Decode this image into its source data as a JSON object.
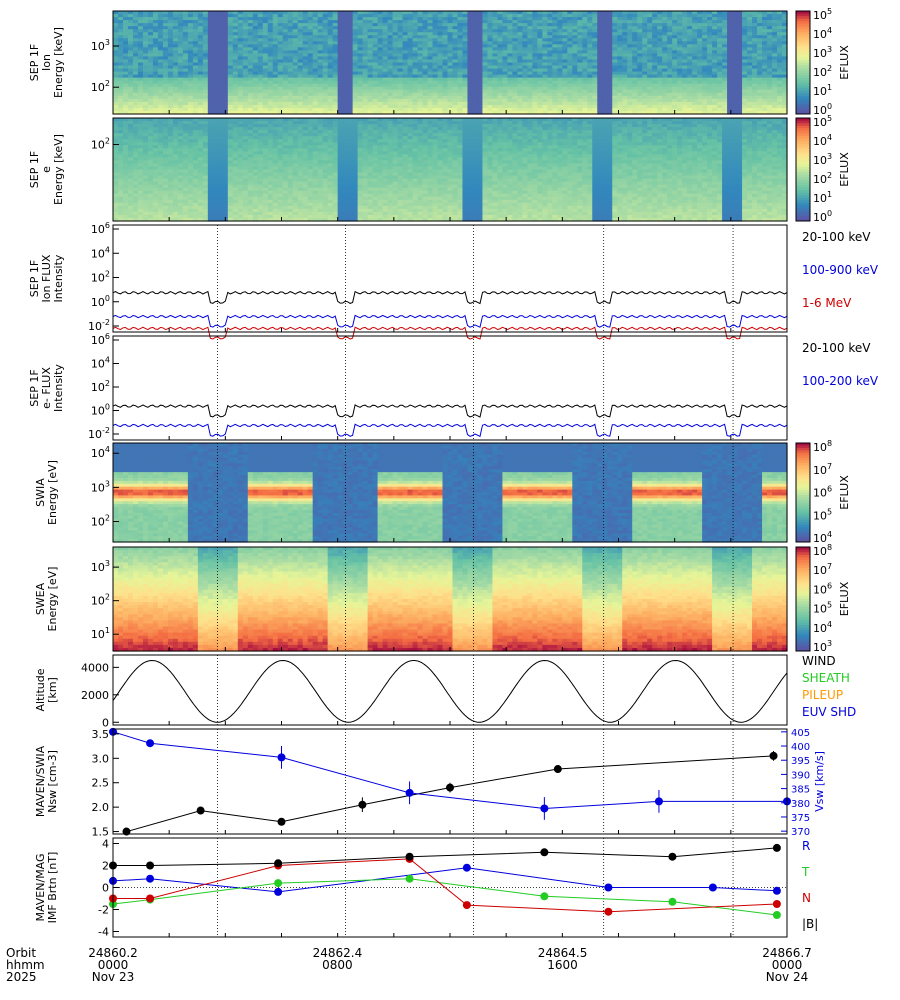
{
  "time_axis": {
    "rows": [
      {
        "label": "Orbit",
        "ticks": [
          "24860.2",
          "24862.4",
          "24864.5",
          "24866.7"
        ]
      },
      {
        "label": "hhmm",
        "ticks": [
          "0000",
          "0800",
          "1600",
          "0000"
        ]
      },
      {
        "label": "2025",
        "ticks": [
          "Nov 23",
          "",
          "",
          "Nov 24"
        ]
      }
    ],
    "dotted_orbit_fractions": [
      0.155,
      0.345,
      0.535,
      0.728,
      0.92
    ],
    "n_orbits": 5
  },
  "panels": [
    {
      "id": "sep-ion",
      "type": "heatmap",
      "ylabel_lines": [
        "SEP 1F",
        "Ion",
        "Energy [keV]"
      ],
      "y_ticks": [
        {
          "label": "10",
          "exp": "3",
          "v": 3
        },
        {
          "label": "10",
          "exp": "2",
          "v": 2
        }
      ],
      "ylim_log10": [
        1.35,
        3.85
      ],
      "cbar": {
        "label": "EFLUX",
        "ticks": [
          "0",
          "1",
          "2",
          "3",
          "4",
          "5"
        ],
        "palette": "spectral"
      }
    },
    {
      "id": "sep-e",
      "type": "heatmap",
      "ylabel_lines": [
        "SEP 1F",
        "e",
        "Energy [keV]"
      ],
      "y_ticks": [
        {
          "label": "10",
          "exp": "2",
          "v": 2
        }
      ],
      "ylim_log10": [
        0.7,
        2.45
      ],
      "cbar": {
        "label": "EFLUX",
        "ticks": [
          "0",
          "1",
          "2",
          "3",
          "4",
          "5"
        ],
        "palette": "spectral"
      }
    },
    {
      "id": "sep-ion-flux",
      "type": "line",
      "ylabel_lines": [
        "SEP 1F",
        "Ion FLUX",
        "Intensity"
      ],
      "y_ticks": [
        {
          "label": "10",
          "exp": "6"
        },
        {
          "label": "10",
          "exp": "4"
        },
        {
          "label": "10",
          "exp": "2"
        },
        {
          "label": "10",
          "exp": "0"
        },
        {
          "label": "10",
          "exp": "-2"
        }
      ],
      "ylim_log10": [
        -3,
        6
      ],
      "series": [
        {
          "name": "20-100 keV",
          "color": "#000000",
          "base_log": 0.3
        },
        {
          "name": "100-900 keV",
          "color": "#0000dd",
          "base_log": -1.7
        },
        {
          "name": "1-6 MeV",
          "color": "#cc0000",
          "base_log": -2.7
        }
      ]
    },
    {
      "id": "sep-e-flux",
      "type": "line",
      "ylabel_lines": [
        "SEP 1F",
        "e- FLUX",
        "Intensity"
      ],
      "y_ticks": [
        {
          "label": "10",
          "exp": "6"
        },
        {
          "label": "10",
          "exp": "4"
        },
        {
          "label": "10",
          "exp": "2"
        },
        {
          "label": "10",
          "exp": "0"
        },
        {
          "label": "10",
          "exp": "-2"
        }
      ],
      "ylim_log10": [
        -2.6,
        6
      ],
      "series": [
        {
          "name": "20-100 keV",
          "color": "#000000",
          "base_log": 0.2
        },
        {
          "name": "100-200 keV",
          "color": "#0000dd",
          "base_log": -1.4
        }
      ]
    },
    {
      "id": "swia",
      "type": "heatmap",
      "ylabel_lines": [
        "SWIA",
        "Energy [eV]"
      ],
      "y_ticks": [
        {
          "label": "10",
          "exp": "4",
          "v": 4
        },
        {
          "label": "10",
          "exp": "3",
          "v": 3
        },
        {
          "label": "10",
          "exp": "2",
          "v": 2
        }
      ],
      "ylim_log10": [
        1.4,
        4.3
      ],
      "cbar": {
        "label": "EFLUX",
        "ticks": [
          "4",
          "5",
          "6",
          "7",
          "8"
        ],
        "palette": "spectral"
      }
    },
    {
      "id": "swea",
      "type": "heatmap",
      "ylabel_lines": [
        "SWEA",
        "Energy [eV]"
      ],
      "y_ticks": [
        {
          "label": "10",
          "exp": "3",
          "v": 3
        },
        {
          "label": "10",
          "exp": "2",
          "v": 2
        },
        {
          "label": "10",
          "exp": "1",
          "v": 1
        }
      ],
      "ylim_log10": [
        0.5,
        3.6
      ],
      "cbar": {
        "label": "EFLUX",
        "ticks": [
          "3",
          "4",
          "5",
          "6",
          "7",
          "8"
        ],
        "palette": "spectral"
      }
    },
    {
      "id": "altitude",
      "type": "line",
      "ylabel_lines": [
        "Altitude",
        "[km]"
      ],
      "y_ticks": [
        {
          "label": "4000",
          "v": 4000
        },
        {
          "label": "2000",
          "v": 2000
        },
        {
          "label": "0",
          "v": 0
        }
      ],
      "ylim": [
        -200,
        4900
      ],
      "legend": [
        {
          "name": "WIND",
          "color": "#000000"
        },
        {
          "name": "SHEATH",
          "color": "#22cc22"
        },
        {
          "name": "PILEUP",
          "color": "#ff9900"
        },
        {
          "name": "EUV SHD",
          "color": "#0000dd"
        }
      ]
    },
    {
      "id": "nsw-vsw",
      "type": "scatter",
      "ylabel_lines": [
        "MAVEN/SWIA",
        "Nsw [cm-3]"
      ],
      "y_ticks": [
        {
          "label": "3.5",
          "v": 3.5
        },
        {
          "label": "3.0",
          "v": 3.0
        },
        {
          "label": "2.5",
          "v": 2.5
        },
        {
          "label": "2.0",
          "v": 2.0
        },
        {
          "label": "1.5",
          "v": 1.5
        }
      ],
      "ylim": [
        1.45,
        3.6
      ],
      "y2label": "Vsw [km/s]",
      "y2_ticks": [
        {
          "label": "405",
          "v": 405
        },
        {
          "label": "400",
          "v": 400
        },
        {
          "label": "395",
          "v": 395
        },
        {
          "label": "390",
          "v": 390
        },
        {
          "label": "385",
          "v": 385
        },
        {
          "label": "380",
          "v": 380
        },
        {
          "label": "375",
          "v": 375
        },
        {
          "label": "370",
          "v": 370
        }
      ],
      "y2lim": [
        369,
        406
      ],
      "series": [
        {
          "name": "Nsw",
          "color": "#000000",
          "axis": "left",
          "x": [
            0.02,
            0.13,
            0.25,
            0.37,
            0.5,
            0.66,
            0.98
          ],
          "y": [
            1.5,
            1.93,
            1.7,
            2.05,
            2.4,
            2.78,
            3.05
          ],
          "err": [
            0,
            0.05,
            0.06,
            0.15,
            0.1,
            0.08,
            0.1
          ]
        },
        {
          "name": "Vsw",
          "color": "#0000dd",
          "axis": "right",
          "x": [
            0.0,
            0.055,
            0.25,
            0.44,
            0.64,
            0.81,
            1.0
          ],
          "y": [
            405,
            401,
            396,
            383.5,
            378,
            380.5,
            380.5
          ],
          "err": [
            0,
            0,
            4,
            4,
            4,
            4,
            2
          ]
        }
      ]
    },
    {
      "id": "imf",
      "type": "scatter",
      "ylabel_lines": [
        "MAVEN/MAG",
        "IMF Brtn [nT]"
      ],
      "y_ticks": [
        {
          "label": "4",
          "v": 4
        },
        {
          "label": "2",
          "v": 2
        },
        {
          "label": "0",
          "v": 0
        },
        {
          "label": "-2",
          "v": -2
        },
        {
          "label": "-4",
          "v": -4
        }
      ],
      "ylim": [
        -4.5,
        4.5
      ],
      "series": [
        {
          "name": "R",
          "color": "#0000dd",
          "x": [
            0.0,
            0.055,
            0.245,
            0.525,
            0.735,
            0.89,
            0.985
          ],
          "y": [
            0.6,
            0.8,
            -0.4,
            1.8,
            0.0,
            0.0,
            -0.3
          ]
        },
        {
          "name": "T",
          "color": "#22cc22",
          "x": [
            0.0,
            0.055,
            0.245,
            0.44,
            0.64,
            0.83,
            0.985
          ],
          "y": [
            -1.5,
            -1.1,
            0.4,
            0.8,
            -0.8,
            -1.3,
            -2.5
          ]
        },
        {
          "name": "N",
          "color": "#cc0000",
          "x": [
            0.0,
            0.055,
            0.245,
            0.44,
            0.525,
            0.735,
            0.985
          ],
          "y": [
            -1.0,
            -1.0,
            2.0,
            2.6,
            -1.6,
            -2.2,
            -1.5
          ]
        },
        {
          "name": "|B|",
          "color": "#000000",
          "x": [
            0.0,
            0.055,
            0.245,
            0.44,
            0.64,
            0.83,
            0.985
          ],
          "y": [
            2.0,
            2.0,
            2.2,
            2.8,
            3.2,
            2.8,
            3.6
          ]
        }
      ]
    }
  ]
}
